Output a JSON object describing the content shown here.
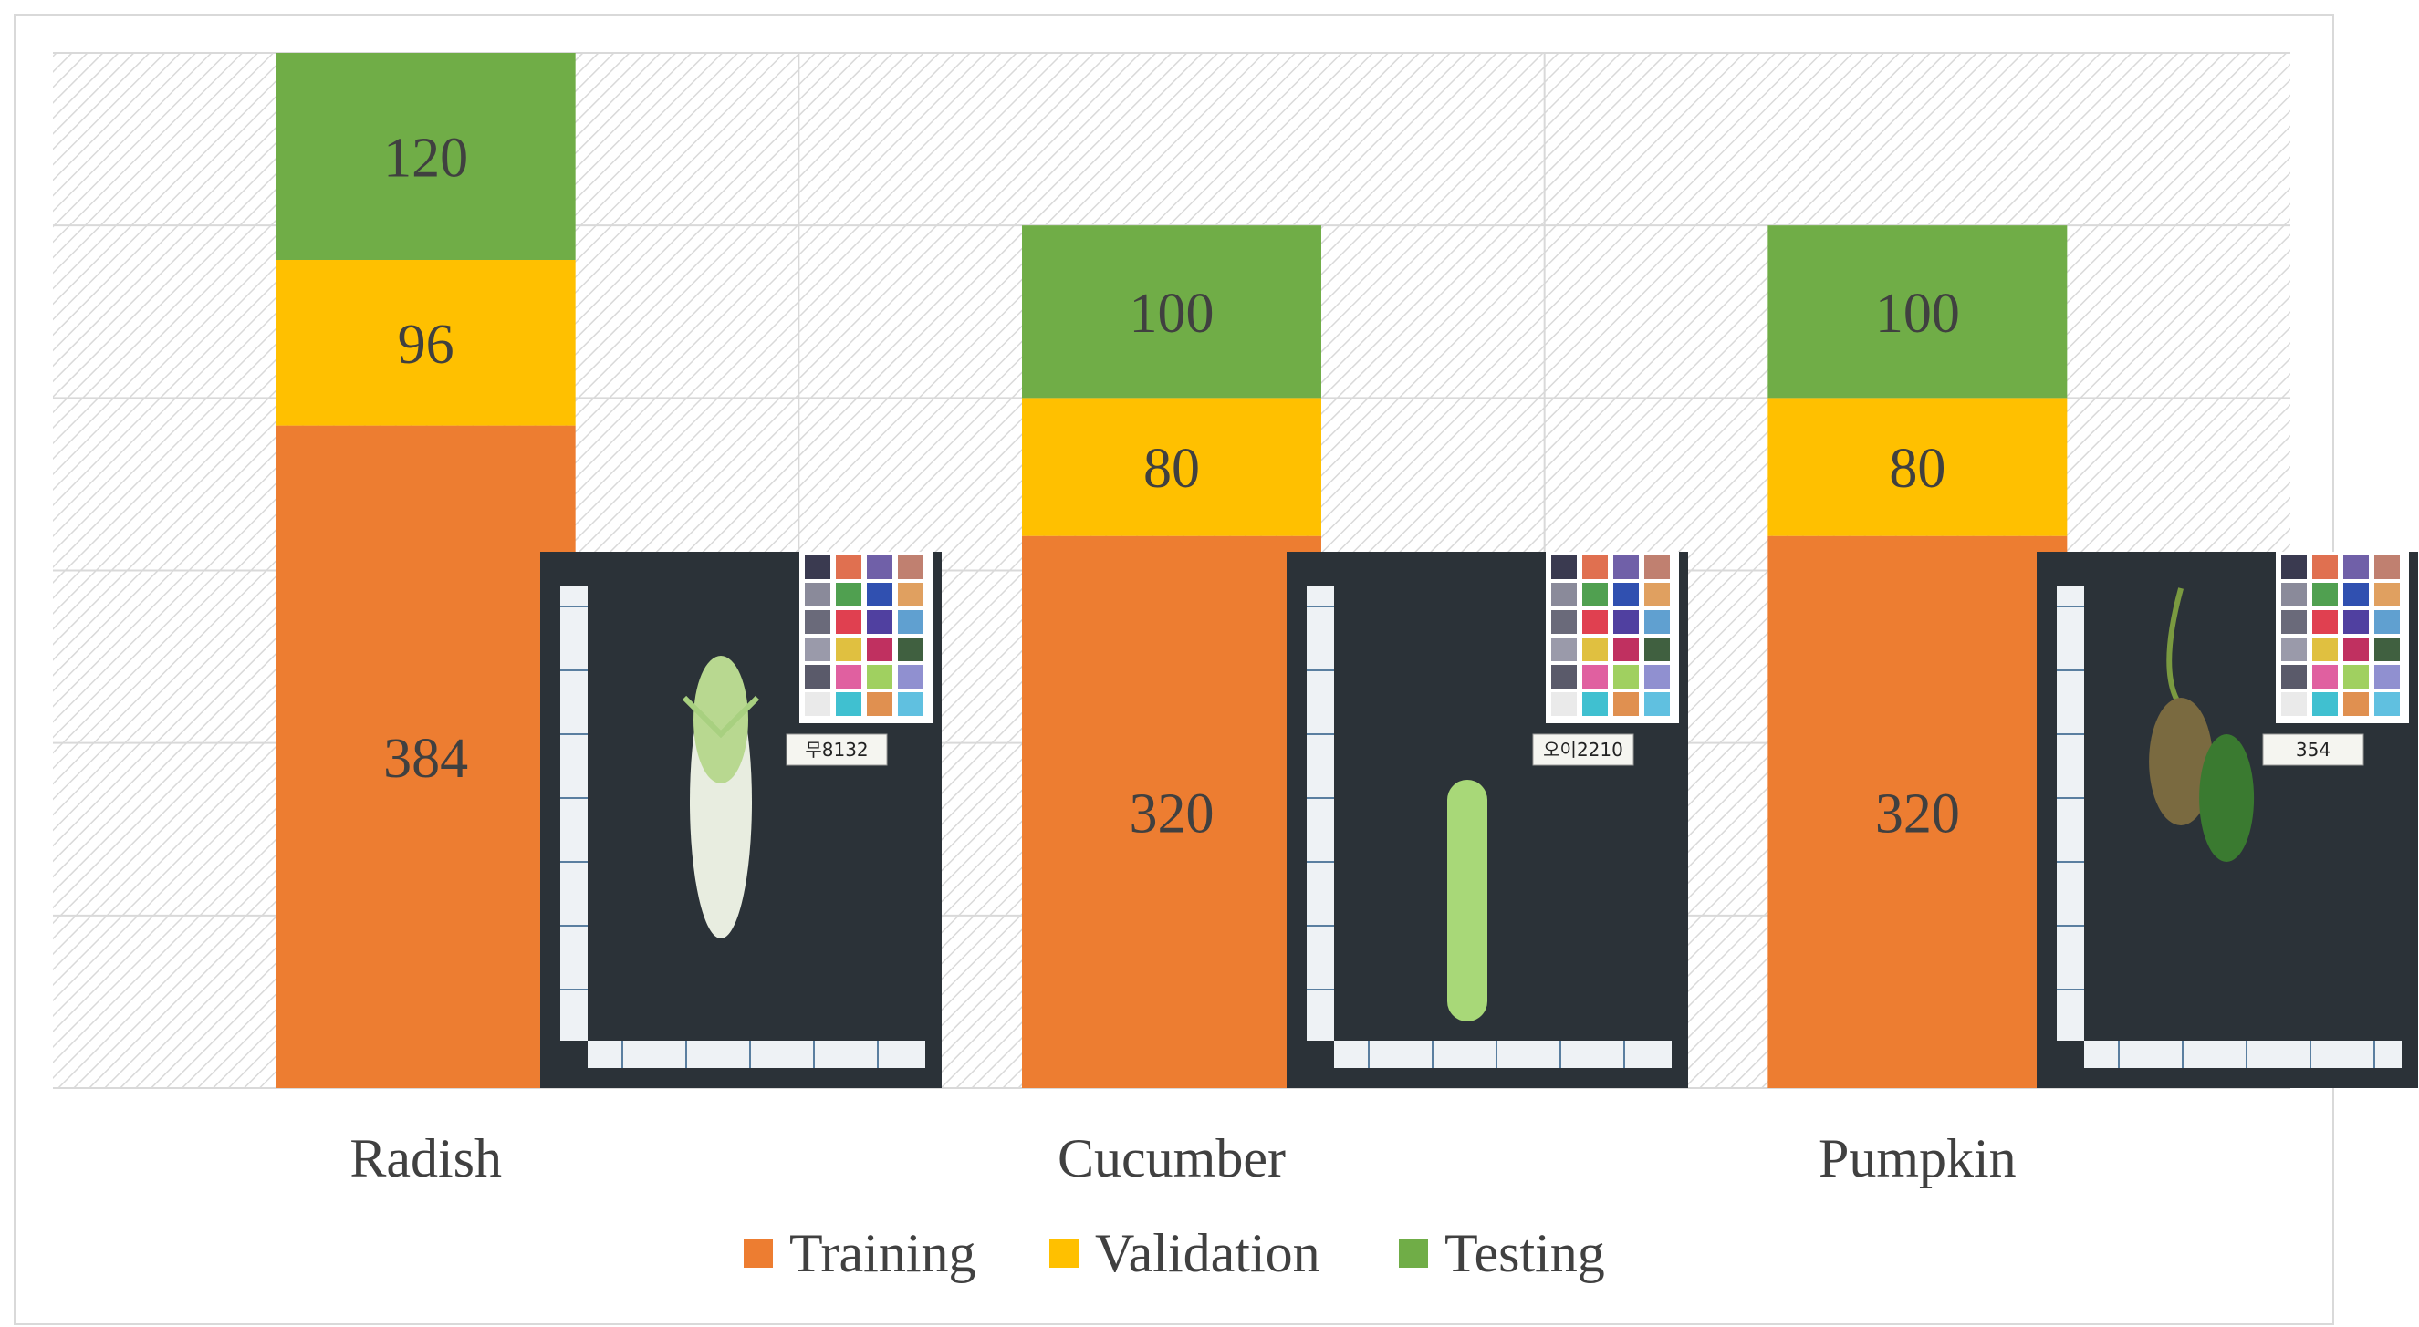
{
  "chart_data": {
    "type": "bar",
    "stacked": true,
    "title": "",
    "xlabel": "",
    "ylabel": "",
    "ylim": [
      0,
      600
    ],
    "y_gridline_step": 100,
    "categories": [
      "Radish",
      "Cucumber",
      "Pumpkin"
    ],
    "series": [
      {
        "name": "Training",
        "color": "#ED7D31",
        "values": [
          384,
          320,
          320
        ]
      },
      {
        "name": "Validation",
        "color": "#FFC000",
        "values": [
          96,
          80,
          80
        ]
      },
      {
        "name": "Testing",
        "color": "#70AD47",
        "values": [
          120,
          100,
          100
        ]
      }
    ],
    "legend_position": "bottom-center",
    "grid": true
  },
  "inset_photos": [
    {
      "subject": "radish",
      "board_label": "무8132",
      "icon": "radish-photo"
    },
    {
      "subject": "cucumber",
      "board_label": "오이2210",
      "icon": "cucumber-photo"
    },
    {
      "subject": "pumpkin",
      "board_label": "354",
      "icon": "pumpkin-photo"
    }
  ]
}
